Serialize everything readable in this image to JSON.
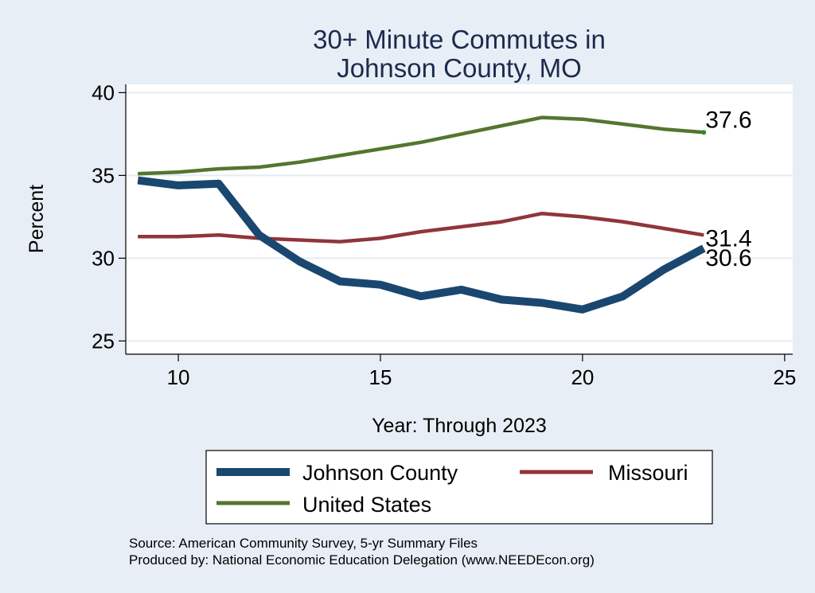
{
  "chart_data": {
    "type": "line",
    "title": [
      "30+ Minute Commutes in",
      "Johnson County, MO"
    ],
    "xlabel": "Year: Through 2023",
    "ylabel": "Percent",
    "xlim": [
      8.7,
      25.2
    ],
    "ylim": [
      24.2,
      40.5
    ],
    "xticks": [
      10,
      15,
      20,
      25
    ],
    "yticks": [
      25,
      30,
      35,
      40
    ],
    "grid": true,
    "legend_position": "bottom",
    "x": [
      9,
      10,
      11,
      12,
      13,
      14,
      15,
      16,
      17,
      18,
      19,
      20,
      21,
      22,
      23
    ],
    "series": [
      {
        "name": "Johnson County",
        "color": "#1a476f",
        "width": "thick",
        "values": [
          34.7,
          34.4,
          34.5,
          31.4,
          29.8,
          28.6,
          28.4,
          27.7,
          28.1,
          27.5,
          27.3,
          26.9,
          27.7,
          29.3,
          30.6
        ],
        "end_label": "30.6"
      },
      {
        "name": "Missouri",
        "color": "#90353b",
        "width": "medium",
        "values": [
          31.3,
          31.3,
          31.4,
          31.2,
          31.1,
          31.0,
          31.2,
          31.6,
          31.9,
          32.2,
          32.7,
          32.5,
          32.2,
          31.8,
          31.4
        ],
        "end_label": "31.4"
      },
      {
        "name": "United States",
        "color": "#55752f",
        "width": "medium",
        "values": [
          35.1,
          35.2,
          35.4,
          35.5,
          35.8,
          36.2,
          36.6,
          37.0,
          37.5,
          38.0,
          38.5,
          38.4,
          38.1,
          37.8,
          37.6
        ],
        "end_label": "37.6"
      }
    ],
    "legend": [
      "Johnson County",
      "Missouri",
      "United States"
    ]
  },
  "source_lines": [
    "Source: American Community Survey, 5-yr Summary Files",
    "Produced by: National Economic Education Delegation (www.NEEDEcon.org)"
  ]
}
